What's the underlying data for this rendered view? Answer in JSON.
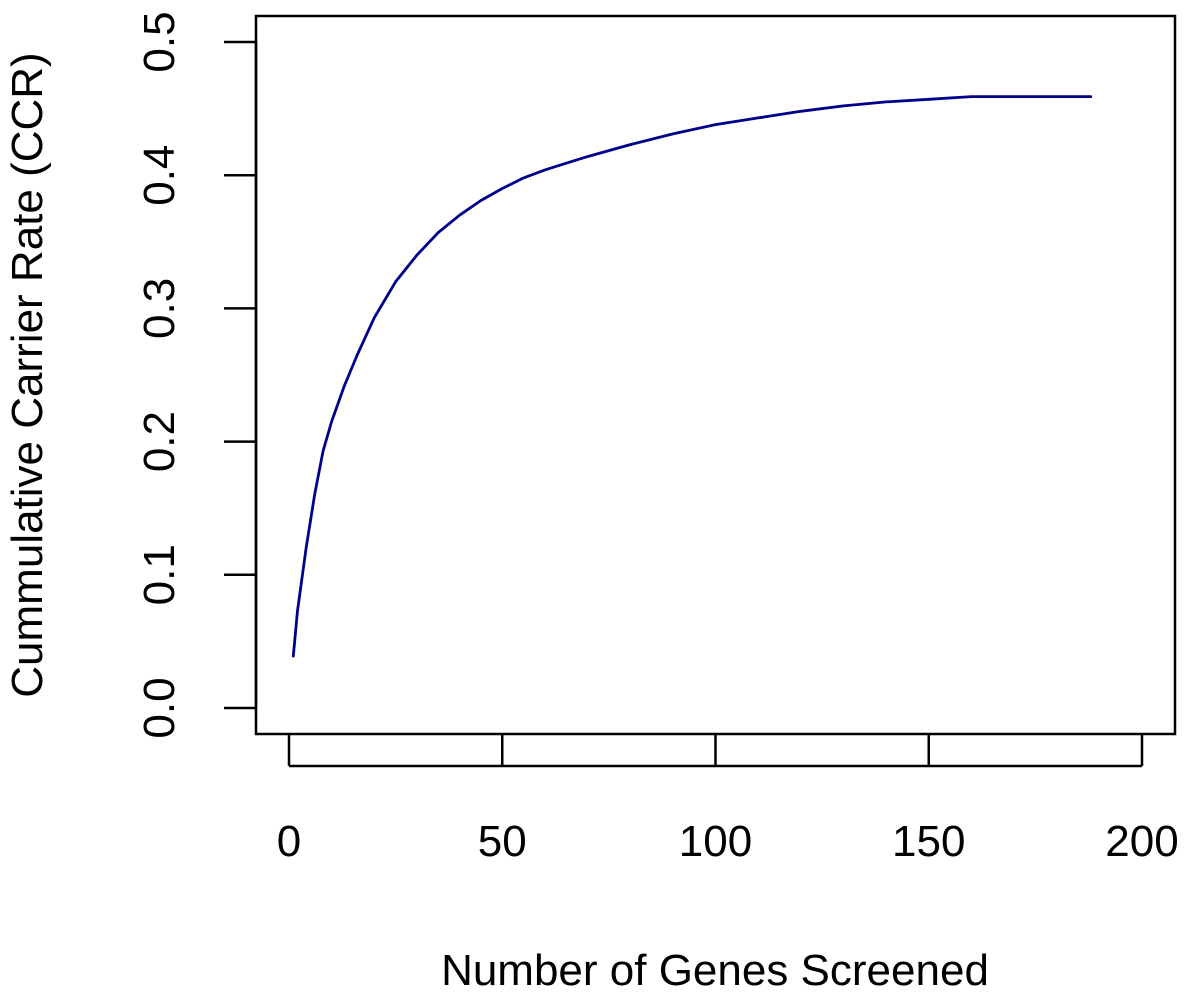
{
  "chart_data": {
    "type": "line",
    "xlabel": "Number of Genes Screened",
    "ylabel": "Cummulative Carrier Rate (CCR)",
    "xlim": [
      0,
      200
    ],
    "ylim": [
      0,
      0.5
    ],
    "xticks": [
      0,
      50,
      100,
      150,
      200
    ],
    "xtick_labels": [
      "0",
      "50",
      "100",
      "150",
      "200"
    ],
    "yticks": [
      0.0,
      0.1,
      0.2,
      0.3,
      0.4,
      0.5
    ],
    "ytick_labels": [
      "0.0",
      "0.1",
      "0.2",
      "0.3",
      "0.4",
      "0.5"
    ],
    "grid": false,
    "legend": "none",
    "series": [
      {
        "color": "#00008B",
        "x": [
          1,
          2,
          4,
          6,
          8,
          10,
          13,
          16,
          20,
          25,
          30,
          35,
          40,
          45,
          50,
          55,
          60,
          65,
          70,
          80,
          90,
          100,
          110,
          120,
          130,
          140,
          150,
          160,
          170,
          180,
          188
        ],
        "y": [
          0.039,
          0.073,
          0.12,
          0.16,
          0.193,
          0.215,
          0.242,
          0.265,
          0.293,
          0.32,
          0.34,
          0.357,
          0.37,
          0.381,
          0.39,
          0.398,
          0.404,
          0.409,
          0.414,
          0.423,
          0.431,
          0.438,
          0.443,
          0.448,
          0.452,
          0.455,
          0.457,
          0.459,
          0.459,
          0.459,
          0.459
        ]
      }
    ]
  }
}
